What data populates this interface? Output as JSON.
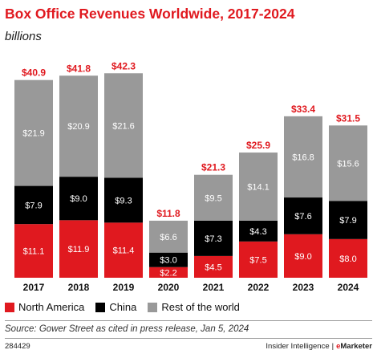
{
  "title": "Box Office Revenues Worldwide, 2017-2024",
  "subtitle": "billions",
  "legend": {
    "north_america": "North America",
    "china": "China",
    "rest": "Rest of the world"
  },
  "source": "Source: Gower Street as cited in press release, Jan 5, 2024",
  "chart_id": "284429",
  "brand": {
    "left": "Insider Intelligence",
    "sep": "|",
    "e": "e",
    "marketer": "Marketer"
  },
  "colors": {
    "north_america": "#e0191f",
    "china": "#000000",
    "rest": "#999999",
    "total_label": "#e0191f"
  },
  "chart_data": {
    "type": "bar",
    "stacked": true,
    "categories": [
      "2017",
      "2018",
      "2019",
      "2020",
      "2021",
      "2022",
      "2023",
      "2024"
    ],
    "series": [
      {
        "name": "North America",
        "values": [
          11.1,
          11.9,
          11.4,
          2.2,
          4.5,
          7.5,
          9.0,
          8.0
        ],
        "labels": [
          "$11.1",
          "$11.9",
          "$11.4",
          "$2.2",
          "$4.5",
          "$7.5",
          "$9.0",
          "$8.0"
        ]
      },
      {
        "name": "China",
        "values": [
          7.9,
          9.0,
          9.3,
          3.0,
          7.3,
          4.3,
          7.6,
          7.9
        ],
        "labels": [
          "$7.9",
          "$9.0",
          "$9.3",
          "$3.0",
          "$7.3",
          "$4.3",
          "$7.6",
          "$7.9"
        ]
      },
      {
        "name": "Rest of the world",
        "values": [
          21.9,
          20.9,
          21.6,
          6.6,
          9.5,
          14.1,
          16.8,
          15.6
        ],
        "labels": [
          "$21.9",
          "$20.9",
          "$21.6",
          "$6.6",
          "$9.5",
          "$14.1",
          "$16.8",
          "$15.6"
        ]
      }
    ],
    "totals": [
      40.9,
      41.8,
      42.3,
      11.8,
      21.3,
      25.9,
      33.4,
      31.5
    ],
    "total_labels": [
      "$40.9",
      "$41.8",
      "$42.3",
      "$11.8",
      "$21.3",
      "$25.9",
      "$33.4",
      "$31.5"
    ],
    "ylim": [
      0,
      45
    ],
    "grid": false,
    "legend_position": "bottom-left"
  }
}
